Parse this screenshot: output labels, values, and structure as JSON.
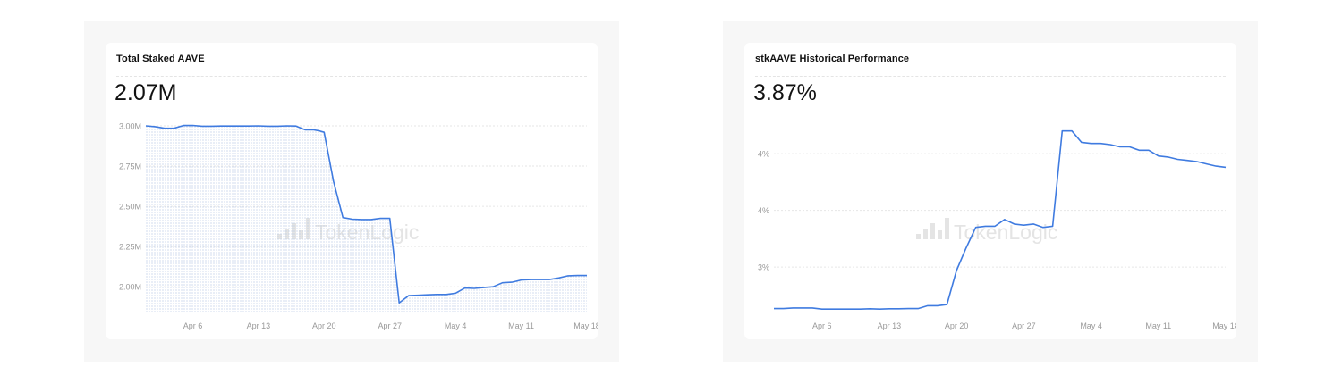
{
  "cards": [
    {
      "title": "Total Staked AAVE",
      "kpi": "2.07M"
    },
    {
      "title": "stkAAVE Historical Performance",
      "kpi": "3.87%"
    }
  ],
  "watermark": "TokenLogic",
  "colors": {
    "line": "#3f7be0",
    "fill_dots": "#b9c9e6",
    "grid": "#e6e6e6",
    "tick_text": "#999999",
    "watermark": "#e4e4e4"
  },
  "chart_data": [
    {
      "type": "area",
      "title": "Total Staked AAVE",
      "xlabel": "",
      "ylabel": "",
      "x_ticks": [
        "Apr 6",
        "Apr 13",
        "Apr 20",
        "Apr 27",
        "May 4",
        "May 11",
        "May 18"
      ],
      "y_ticks": [
        "3.00M",
        "2.75M",
        "2.50M",
        "2.25M",
        "2.00M"
      ],
      "y_tick_values": [
        3.0,
        2.75,
        2.5,
        2.25,
        2.0
      ],
      "ylim": [
        1.84,
        3.0
      ],
      "xlim": [
        0,
        47
      ],
      "x_tick_days": [
        5,
        12,
        19,
        26,
        33,
        40,
        47
      ],
      "grid": true,
      "x": [
        0,
        1,
        2,
        3,
        4,
        5,
        6,
        7,
        8,
        9,
        10,
        11,
        12,
        13,
        14,
        15,
        16,
        17,
        17.9,
        18.4,
        19,
        20,
        21,
        22,
        23,
        24,
        25,
        25.9,
        26,
        27,
        28,
        29,
        30,
        31,
        32,
        33,
        34,
        35,
        36,
        37,
        38,
        39,
        40,
        41,
        42,
        43,
        44,
        45,
        46,
        47
      ],
      "values": [
        3.0,
        2.995,
        2.985,
        2.985,
        3.002,
        3.003,
        2.998,
        2.998,
        2.999,
        2.999,
        2.999,
        2.999,
        3.0,
        2.998,
        2.998,
        3.0,
        2.999,
        2.975,
        2.975,
        2.97,
        2.96,
        2.655,
        2.43,
        2.42,
        2.418,
        2.418,
        2.425,
        2.425,
        2.425,
        1.9,
        1.945,
        1.947,
        1.95,
        1.952,
        1.952,
        1.96,
        1.992,
        1.99,
        1.995,
        2.0,
        2.025,
        2.028,
        2.042,
        2.045,
        2.045,
        2.045,
        2.055,
        2.068,
        2.07,
        2.07
      ],
      "series_name": ""
    },
    {
      "type": "line",
      "title": "stkAAVE Historical Performance",
      "xlabel": "",
      "ylabel": "",
      "x_ticks": [
        "Apr 6",
        "Apr 13",
        "Apr 20",
        "Apr 27",
        "May 4",
        "May 11",
        "May 18"
      ],
      "y_ticks": [
        "4%",
        "4%",
        "3%"
      ],
      "y_tick_values": [
        4.35,
        3.85,
        3.35
      ],
      "ylim": [
        2.95,
        4.65
      ],
      "xlim": [
        0,
        47
      ],
      "x_tick_days": [
        5,
        12,
        19,
        26,
        33,
        40,
        47
      ],
      "grid": true,
      "x": [
        0,
        1,
        2,
        3,
        4,
        5,
        6,
        7,
        8,
        9,
        10,
        11,
        12,
        13,
        14,
        15,
        16,
        17,
        18,
        19,
        20,
        21,
        22,
        23,
        24,
        25,
        26,
        27,
        28,
        29,
        30,
        31,
        32,
        33,
        34,
        35,
        36,
        37,
        38,
        39,
        40,
        41,
        42,
        43,
        44,
        45,
        46,
        47
      ],
      "values": [
        2.985,
        2.985,
        2.99,
        2.99,
        2.99,
        2.98,
        2.98,
        2.98,
        2.98,
        2.98,
        2.983,
        2.98,
        2.983,
        2.983,
        2.985,
        2.985,
        3.01,
        3.01,
        3.02,
        3.32,
        3.52,
        3.7,
        3.71,
        3.71,
        3.77,
        3.73,
        3.72,
        3.73,
        3.7,
        3.71,
        4.55,
        4.55,
        4.45,
        4.44,
        4.44,
        4.43,
        4.41,
        4.41,
        4.38,
        4.38,
        4.33,
        4.32,
        4.3,
        4.29,
        4.28,
        4.26,
        4.24,
        4.23
      ],
      "series_name": ""
    }
  ]
}
